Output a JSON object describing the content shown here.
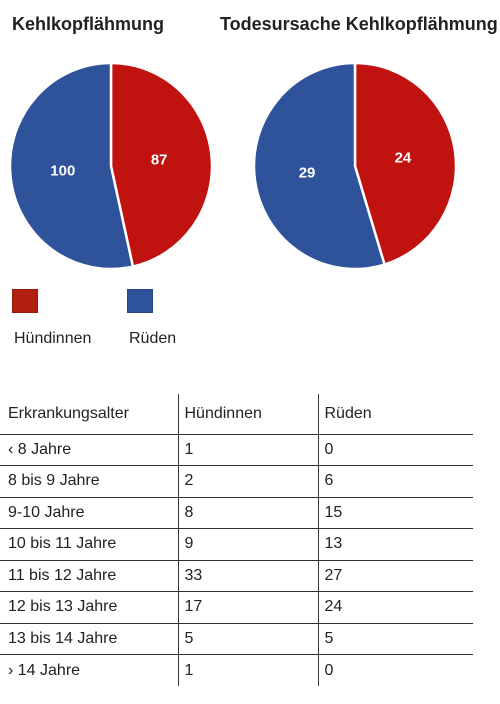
{
  "chart_data": [
    {
      "type": "pie",
      "title": "Kehlkopflähmung",
      "categories": [
        "Hündinnen",
        "Rüden"
      ],
      "values": [
        87,
        100
      ],
      "colors": [
        "#c0120e",
        "#2f539b"
      ]
    },
    {
      "type": "pie",
      "title": "Todesursache Kehlkopflähmung",
      "categories": [
        "Hündinnen",
        "Rüden"
      ],
      "values": [
        24,
        29
      ],
      "colors": [
        "#c0120e",
        "#2f539b"
      ]
    }
  ],
  "legend": [
    {
      "label": "Hündinnen",
      "color": "#b1200f"
    },
    {
      "label": "Rüden",
      "color": "#2f539b"
    }
  ],
  "table": {
    "headers": [
      "Erkrankungsalter",
      "Hündinnen",
      "Rüden"
    ],
    "rows": [
      [
        "‹ 8 Jahre",
        "1",
        "0"
      ],
      [
        "8 bis 9 Jahre",
        "2",
        "6"
      ],
      [
        "9-10 Jahre",
        "8",
        "15"
      ],
      [
        "10 bis 11 Jahre",
        "9",
        "13"
      ],
      [
        "11 bis 12 Jahre",
        "33",
        "27"
      ],
      [
        "12 bis 13 Jahre",
        "17",
        "24"
      ],
      [
        "13 bis 14 Jahre",
        "5",
        "5"
      ],
      [
        "› 14 Jahre",
        "1",
        "0"
      ]
    ]
  }
}
